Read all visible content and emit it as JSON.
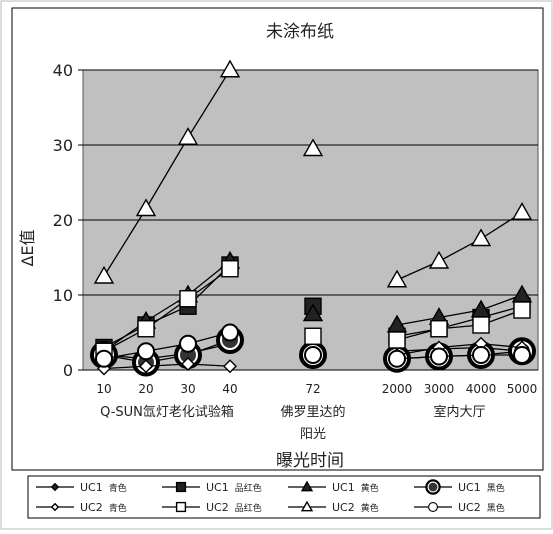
{
  "chart_data": {
    "type": "line",
    "title": "未涂布纸",
    "xlabel": "曝光时间",
    "ylabel": "ΔE值",
    "ylim": [
      0,
      40
    ],
    "yticks": [
      0,
      10,
      20,
      30,
      40
    ],
    "grid": true,
    "legend_position": "bottom",
    "groups": [
      {
        "name": "Q-SUN氙灯老化试验箱",
        "categories": [
          "10",
          "20",
          "30",
          "40"
        ]
      },
      {
        "name": "佛罗里达的阳光",
        "name_lines": [
          "佛罗里达的",
          "阳光"
        ],
        "categories": [
          "72"
        ]
      },
      {
        "name": "室内大厅",
        "categories": [
          "2000",
          "3000",
          "4000",
          "5000"
        ]
      }
    ],
    "series": [
      {
        "name": "UC1 青色",
        "label_id": "UC1",
        "label_color": "青色",
        "marker": "diamond",
        "fill": "filled",
        "size": "small",
        "groups": [
          [
            2,
            1.5,
            2.2,
            3.5
          ],
          [
            2
          ],
          [
            2.5,
            2.8,
            3,
            2.5
          ]
        ]
      },
      {
        "name": "UC1 品红色",
        "label_id": "UC1",
        "label_color": "品红色",
        "marker": "square",
        "fill": "filled",
        "size": "small",
        "groups": [
          [
            3,
            6,
            8.5,
            14
          ],
          [
            8.5
          ],
          [
            4.5,
            5.5,
            7,
            8.5
          ]
        ]
      },
      {
        "name": "UC1 黄色",
        "label_id": "UC1",
        "label_color": "黄色",
        "marker": "triangle",
        "fill": "filled",
        "size": "small",
        "groups": [
          [
            2.5,
            6.5,
            10,
            14.5
          ],
          [
            7.5
          ],
          [
            6,
            7,
            8,
            10
          ]
        ]
      },
      {
        "name": "UC1 黑色",
        "label_id": "UC1",
        "label_color": "黑色",
        "marker": "circle",
        "fill": "filled",
        "size": "large",
        "groups": [
          [
            2,
            1,
            2,
            4
          ],
          [
            2
          ],
          [
            1.5,
            1.8,
            2,
            2.5
          ]
        ]
      },
      {
        "name": "UC2 青色",
        "label_id": "UC2",
        "label_color": "青色",
        "marker": "diamond",
        "fill": "open",
        "size": "small",
        "groups": [
          [
            0.2,
            0.5,
            0.8,
            0.5
          ],
          [
            2
          ],
          [
            2,
            3,
            3.5,
            3
          ]
        ]
      },
      {
        "name": "UC2 品红色",
        "label_id": "UC2",
        "label_color": "品红色",
        "marker": "square",
        "fill": "open",
        "size": "small",
        "groups": [
          [
            2.5,
            5.5,
            9.5,
            13.5
          ],
          [
            4.5
          ],
          [
            4,
            5.5,
            6,
            8
          ]
        ]
      },
      {
        "name": "UC2 黄色",
        "label_id": "UC2",
        "label_color": "黄色",
        "marker": "triangle",
        "fill": "open",
        "size": "small",
        "groups": [
          [
            12.5,
            21.5,
            31,
            40
          ],
          [
            29.5
          ],
          [
            12,
            14.5,
            17.5,
            21
          ]
        ]
      },
      {
        "name": "UC2 黑色",
        "label_id": "UC2",
        "label_color": "黑色",
        "marker": "circle",
        "fill": "open",
        "size": "small",
        "groups": [
          [
            1.5,
            2.5,
            3.5,
            5
          ],
          [
            2
          ],
          [
            1.5,
            1.8,
            2,
            2
          ]
        ]
      }
    ]
  }
}
